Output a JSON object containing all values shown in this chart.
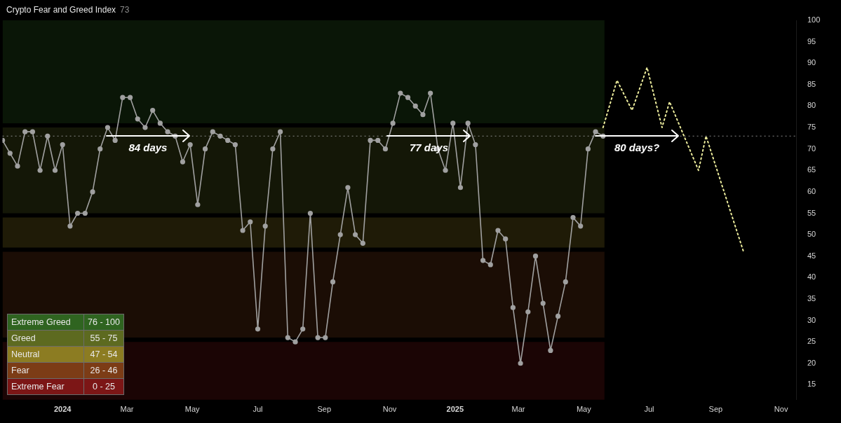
{
  "chart_data": {
    "type": "line",
    "title": "Crypto Fear and Greed Index",
    "subtitle": "73",
    "xlim": [
      "2023-11-06",
      "2025-11-15"
    ],
    "xticks": [
      {
        "value": "2024-01-01",
        "label": "2024"
      },
      {
        "value": "2024-03-01",
        "label": "Mar"
      },
      {
        "value": "2024-05-01",
        "label": "May"
      },
      {
        "value": "2024-07-01",
        "label": "Jul"
      },
      {
        "value": "2024-09-01",
        "label": "Sep"
      },
      {
        "value": "2024-11-01",
        "label": "Nov"
      },
      {
        "value": "2025-01-01",
        "label": "2025"
      },
      {
        "value": "2025-03-01",
        "label": "Mar"
      },
      {
        "value": "2025-05-01",
        "label": "May"
      },
      {
        "value": "2025-07-01",
        "label": "Jul"
      },
      {
        "value": "2025-09-01",
        "label": "Sep"
      },
      {
        "value": "2025-11-01",
        "label": "Nov"
      }
    ],
    "ylim": [
      11.5,
      100
    ],
    "yticks": [
      15,
      20,
      25,
      30,
      35,
      40,
      45,
      50,
      55,
      60,
      65,
      70,
      75,
      80,
      85,
      90,
      95,
      100
    ],
    "grid": false,
    "legend": false,
    "series": [
      {
        "type": "line",
        "color": "#a0a0a0",
        "marker": "circle",
        "line_style": "solid",
        "x": [
          "2023-11-06",
          "2023-11-13",
          "2023-11-20",
          "2023-11-27",
          "2023-12-04",
          "2023-12-11",
          "2023-12-18",
          "2023-12-25",
          "2024-01-01",
          "2024-01-08",
          "2024-01-15",
          "2024-01-22",
          "2024-01-29",
          "2024-02-05",
          "2024-02-12",
          "2024-02-19",
          "2024-02-26",
          "2024-03-04",
          "2024-03-11",
          "2024-03-18",
          "2024-03-25",
          "2024-04-01",
          "2024-04-08",
          "2024-04-15",
          "2024-04-22",
          "2024-04-29",
          "2024-05-06",
          "2024-05-13",
          "2024-05-20",
          "2024-05-27",
          "2024-06-03",
          "2024-06-10",
          "2024-06-17",
          "2024-06-24",
          "2024-07-01",
          "2024-07-08",
          "2024-07-15",
          "2024-07-22",
          "2024-07-29",
          "2024-08-05",
          "2024-08-12",
          "2024-08-19",
          "2024-08-26",
          "2024-09-02",
          "2024-09-09",
          "2024-09-16",
          "2024-09-23",
          "2024-09-30",
          "2024-10-07",
          "2024-10-14",
          "2024-10-21",
          "2024-10-28",
          "2024-11-04",
          "2024-11-11",
          "2024-11-18",
          "2024-11-25",
          "2024-12-02",
          "2024-12-09",
          "2024-12-16",
          "2024-12-23",
          "2024-12-30",
          "2025-01-06",
          "2025-01-13",
          "2025-01-20",
          "2025-01-27",
          "2025-02-03",
          "2025-02-10",
          "2025-02-17",
          "2025-02-24",
          "2025-03-03",
          "2025-03-10",
          "2025-03-17",
          "2025-03-24",
          "2025-03-31",
          "2025-04-07",
          "2025-04-14",
          "2025-04-21",
          "2025-04-28",
          "2025-05-05",
          "2025-05-12",
          "2025-05-19"
        ],
        "values": [
          72,
          69,
          66,
          74,
          74,
          65,
          73,
          65,
          71,
          52,
          55,
          55,
          60,
          70,
          75,
          72,
          82,
          82,
          77,
          75,
          79,
          76,
          74,
          73,
          67,
          71,
          57,
          70,
          74,
          73,
          72,
          71,
          51,
          53,
          28,
          52,
          70,
          74,
          26,
          25,
          28,
          55,
          26,
          26,
          39,
          50,
          61,
          50,
          48,
          72,
          72,
          70,
          76,
          83,
          82,
          80,
          78,
          83,
          70,
          65,
          76,
          61,
          76,
          71,
          44,
          43,
          51,
          49,
          33,
          20,
          32,
          45,
          34,
          23,
          31,
          39,
          54,
          52,
          70,
          74,
          73
        ]
      },
      {
        "type": "line",
        "color": "#ecec9c",
        "marker": "none",
        "line_style": "dotted",
        "x": [
          "2025-05-19",
          "2025-06-01",
          "2025-06-15",
          "2025-06-29",
          "2025-07-13",
          "2025-07-20",
          "2025-08-16",
          "2025-08-23",
          "2025-09-27"
        ],
        "values": [
          75,
          86,
          79,
          89,
          75,
          81,
          65,
          73,
          46
        ]
      }
    ],
    "ref_lines": [
      {
        "axis": "y",
        "value": 73,
        "color": "#8a8a8a",
        "line_style": "dotted"
      }
    ],
    "bands": [
      {
        "axis": "y",
        "from": 76,
        "to": 100,
        "color": "#2f6420"
      },
      {
        "axis": "y",
        "from": 55,
        "to": 75,
        "color": "#5d6a20"
      },
      {
        "axis": "y",
        "from": 47,
        "to": 54,
        "color": "#8c7c22"
      },
      {
        "axis": "y",
        "from": 26,
        "to": 46,
        "color": "#7c3c16"
      },
      {
        "axis": "y",
        "from": 0,
        "to": 25,
        "color": "#7c1616"
      }
    ],
    "annotations": [
      {
        "text": "84 days",
        "x": "2024-02-11",
        "y": 73
      },
      {
        "text": "77 days",
        "x": "2024-10-30",
        "y": 73
      },
      {
        "text": "80 days?",
        "x": "2025-05-12",
        "y": 73
      },
      "Extreme Greed",
      "76 - 100",
      "Greed",
      "55 - 75",
      "Neutral",
      "47 - 54",
      "Fear",
      "26 - 46",
      "Extreme Fear",
      "0 - 25"
    ]
  }
}
